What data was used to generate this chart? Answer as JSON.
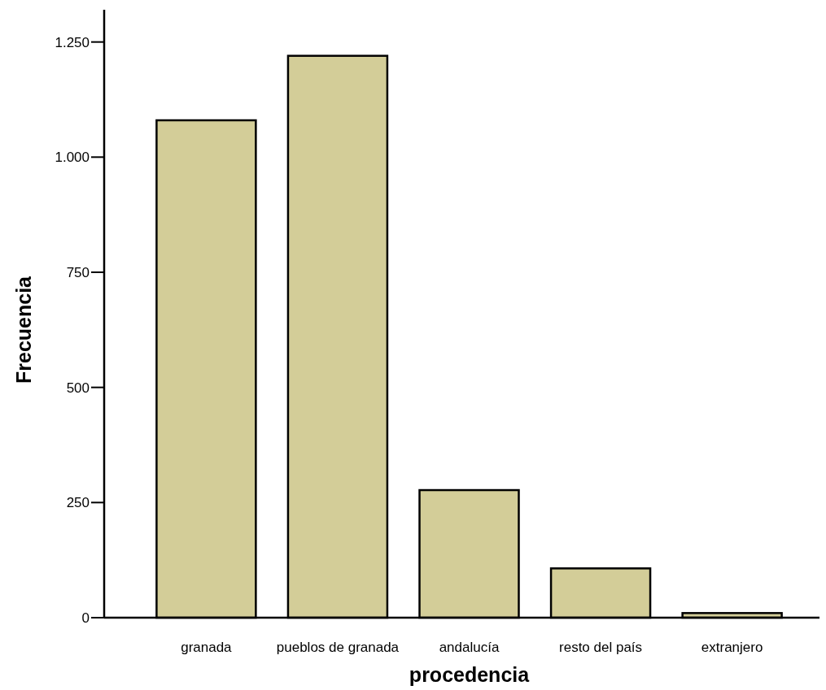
{
  "chart_data": {
    "type": "bar",
    "xlabel": "procedencia",
    "ylabel": "Frecuencia",
    "categories": [
      "granada",
      "pueblos de granada",
      "andalucía",
      "resto del país",
      "extranjero"
    ],
    "values": [
      1080,
      1220,
      277,
      107,
      10
    ],
    "color": "#d3cd98",
    "ylim": [
      0,
      1320
    ],
    "yticks": [
      0,
      250,
      500,
      750,
      {
        "value": 1000,
        "label": "1.000"
      },
      {
        "value": 1250,
        "label": "1.250"
      }
    ],
    "grid": false
  }
}
